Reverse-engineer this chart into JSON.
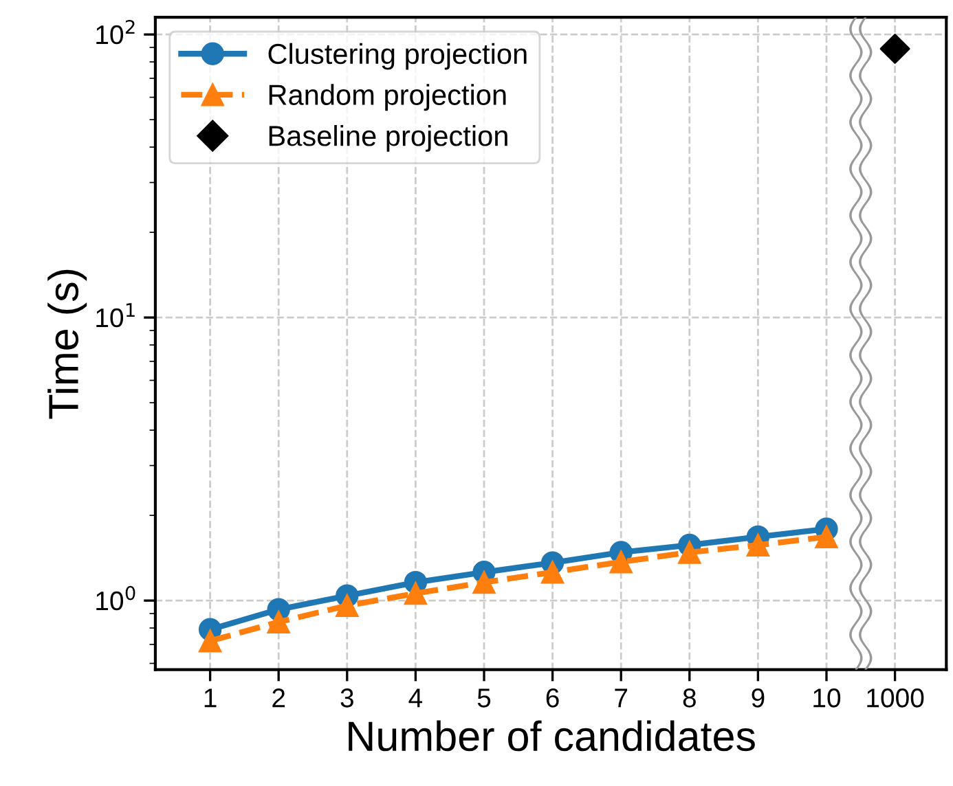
{
  "chart_data": {
    "type": "line",
    "xlabel": "Number of candidates",
    "ylabel": "Time (s)",
    "categories": [
      "1",
      "2",
      "3",
      "4",
      "5",
      "6",
      "7",
      "8",
      "9",
      "10",
      "1000"
    ],
    "log": "y",
    "ylim": [
      0.57,
      115
    ],
    "yticks": [
      {
        "value": 1,
        "label": "10$^{0}$"
      },
      {
        "value": 10,
        "label": "10$^{1}$"
      },
      {
        "value": 100,
        "label": "10$^{2}$"
      }
    ],
    "grid": true,
    "legend": "top left",
    "series": [
      {
        "name": "Clustering projection",
        "color": "#1f77b4",
        "marker": "circle",
        "line_style": "solid",
        "values": [
          0.79,
          0.93,
          1.04,
          1.16,
          1.26,
          1.36,
          1.48,
          1.57,
          1.68,
          1.79,
          null
        ]
      },
      {
        "name": "Random projection",
        "color": "#ff7f0e",
        "marker": "triangle",
        "line_style": "dashed",
        "values": [
          0.72,
          0.84,
          0.96,
          1.06,
          1.16,
          1.26,
          1.37,
          1.48,
          1.57,
          1.68,
          null
        ]
      },
      {
        "name": "Baseline projection",
        "type": "scatter",
        "color": "#000000",
        "marker": "diamond",
        "values": [
          null,
          null,
          null,
          null,
          null,
          null,
          null,
          null,
          null,
          null,
          89
        ]
      }
    ]
  }
}
